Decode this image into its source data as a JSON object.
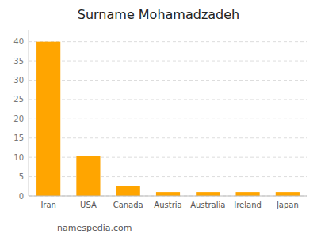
{
  "chart_data": {
    "type": "bar",
    "title": "Surname Mohamadzadeh",
    "categories": [
      "Iran",
      "USA",
      "Canada",
      "Austria",
      "Australia",
      "Ireland",
      "Japan"
    ],
    "values": [
      40,
      10.3,
      2.5,
      1,
      1,
      1,
      1
    ],
    "color": "#FFA500",
    "ylim": [
      0,
      43
    ],
    "yticks": [
      0,
      5,
      10,
      15,
      20,
      25,
      30,
      35,
      40
    ],
    "grid": true,
    "annotations": [
      "namespedia.com"
    ]
  }
}
